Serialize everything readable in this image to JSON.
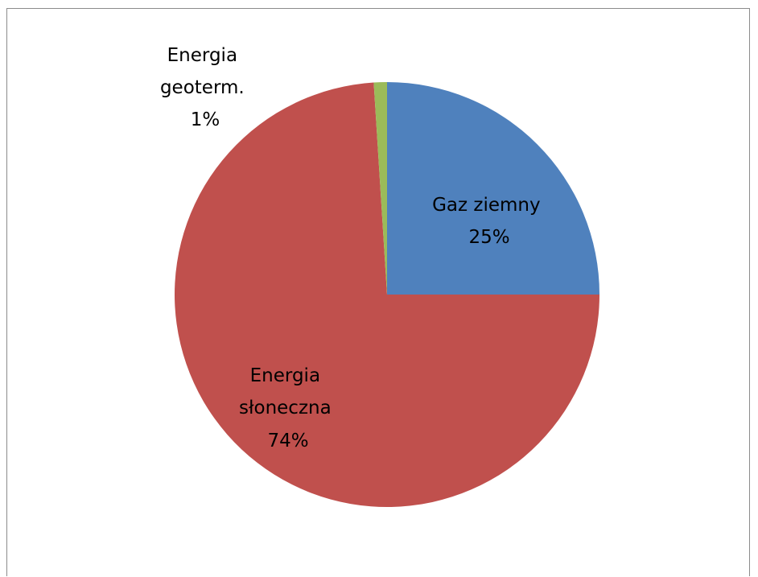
{
  "chart_data": {
    "type": "pie",
    "title": "",
    "start_angle_deg": 0,
    "direction": "clockwise",
    "legend": "none",
    "slices": [
      {
        "label_lines": [
          "Gaz ziemny"
        ],
        "value": 25,
        "value_label": "25%",
        "color": "#4f81bd"
      },
      {
        "label_lines": [
          "Energia",
          "słoneczna"
        ],
        "value": 74,
        "value_label": "74%",
        "color": "#c0504d"
      },
      {
        "label_lines": [
          "Energia",
          "geoterm."
        ],
        "value": 1,
        "value_label": "1%",
        "color": "#9bbb59"
      }
    ]
  }
}
